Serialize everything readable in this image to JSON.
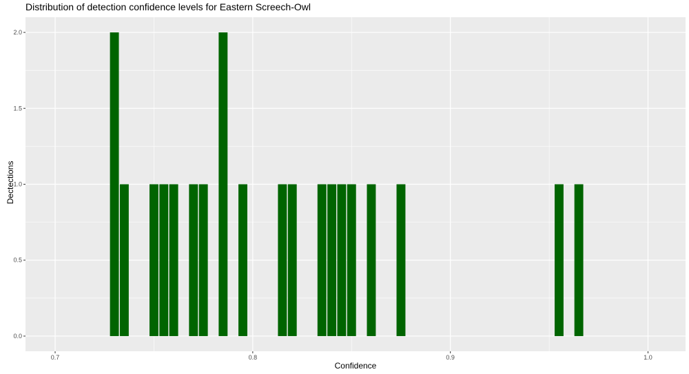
{
  "chart_data": {
    "type": "bar",
    "title": "Distribution of detection confidence levels for Eastern Screech-Owl",
    "xlabel": "Confidence",
    "ylabel": "Dectections",
    "xlim": [
      0.685,
      1.019
    ],
    "ylim": [
      -0.1,
      2.1
    ],
    "x_ticks": [
      0.7,
      0.8,
      0.9,
      1.0
    ],
    "x_tick_labels": [
      "0.7",
      "0.8",
      "0.9",
      "1.0"
    ],
    "y_ticks": [
      0,
      0.5,
      1,
      1.5,
      2
    ],
    "y_tick_labels": [
      "0.0",
      "0.5",
      "1.0",
      "1.5",
      "2.0"
    ],
    "bar_width": 0.0045,
    "color": "#006400",
    "grid": true,
    "bars": [
      {
        "x": 0.73,
        "count": 2
      },
      {
        "x": 0.735,
        "count": 1
      },
      {
        "x": 0.75,
        "count": 1
      },
      {
        "x": 0.755,
        "count": 1
      },
      {
        "x": 0.76,
        "count": 1
      },
      {
        "x": 0.77,
        "count": 1
      },
      {
        "x": 0.775,
        "count": 1
      },
      {
        "x": 0.785,
        "count": 2
      },
      {
        "x": 0.795,
        "count": 1
      },
      {
        "x": 0.815,
        "count": 1
      },
      {
        "x": 0.82,
        "count": 1
      },
      {
        "x": 0.835,
        "count": 1
      },
      {
        "x": 0.84,
        "count": 1
      },
      {
        "x": 0.845,
        "count": 1
      },
      {
        "x": 0.85,
        "count": 1
      },
      {
        "x": 0.86,
        "count": 1
      },
      {
        "x": 0.875,
        "count": 1
      },
      {
        "x": 0.955,
        "count": 1
      },
      {
        "x": 0.965,
        "count": 1
      }
    ]
  }
}
